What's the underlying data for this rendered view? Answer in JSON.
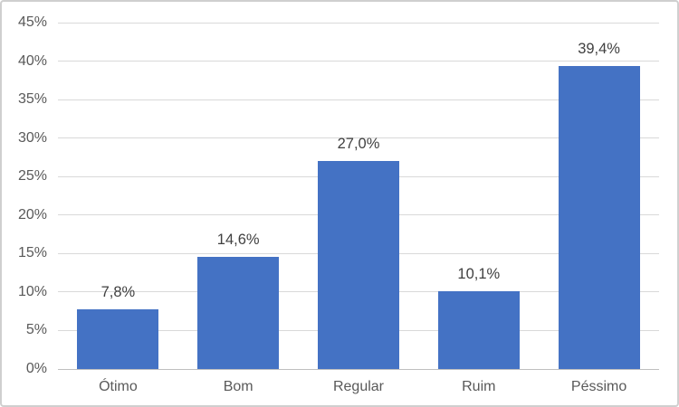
{
  "chart_data": {
    "type": "bar",
    "title": "",
    "xlabel": "",
    "ylabel": "",
    "categories": [
      "Ótimo",
      "Bom",
      "Regular",
      "Ruim",
      "Péssimo"
    ],
    "values": [
      7.8,
      14.6,
      27.0,
      10.1,
      39.4
    ],
    "value_labels": [
      "7,8%",
      "14,6%",
      "27,0%",
      "10,1%",
      "39,4%"
    ],
    "y_tick_labels": [
      "45%",
      "40%",
      "35%",
      "30%",
      "25%",
      "20%",
      "15%",
      "10%",
      "5%",
      "0%"
    ],
    "ylim": [
      0,
      45
    ],
    "y_tick_step": 5,
    "grid": "horizontal",
    "legend": "none"
  },
  "style": {
    "bar_color": "#4472C4",
    "gridline_color": "#D9D9D9",
    "axis_line_color": "#BFBFBF",
    "tick_text_color": "#595959",
    "data_label_color": "#404040",
    "background_color": "#FFFFFF",
    "border_color": "#CFCFCF"
  }
}
